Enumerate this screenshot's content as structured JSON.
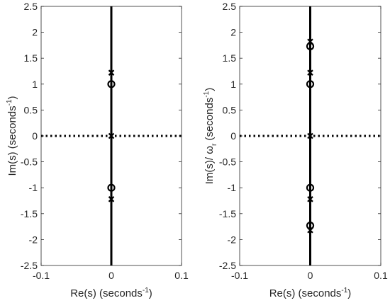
{
  "chart_data": [
    {
      "type": "scatter",
      "title": "",
      "xlabel": "Re(s) (seconds",
      "xlabel_sup": "-1",
      "xlabel_end": ")",
      "ylabel": "Im(s)  (seconds",
      "ylabel_sup": "-1",
      "ylabel_end": ")",
      "xlim": [
        -0.1,
        0.1
      ],
      "ylim": [
        -2.5,
        2.5
      ],
      "xticks": [
        "-0.1",
        "0",
        "0.1"
      ],
      "yticks": [
        "-2.5",
        "-2",
        "-1.5",
        "-1",
        "-0.5",
        "0",
        "0.5",
        "1",
        "1.5",
        "2",
        "2.5"
      ],
      "grid": false,
      "reference_lines": [
        {
          "orientation": "vertical",
          "value": 0,
          "style": "solid"
        },
        {
          "orientation": "horizontal",
          "value": 0,
          "style": "dotted"
        }
      ],
      "series": [
        {
          "marker": "x",
          "x": [
            0,
            0,
            0
          ],
          "y": [
            1.22,
            0,
            -1.22
          ]
        },
        {
          "marker": "o",
          "x": [
            0,
            0
          ],
          "y": [
            1.0,
            -1.0
          ]
        }
      ]
    },
    {
      "type": "scatter",
      "title": "",
      "xlabel": "Re(s) (seconds",
      "xlabel_sup": "-1",
      "xlabel_end": ")",
      "ylabel": "Im(s)/ ω",
      "ylabel_sub": "r",
      "ylabel_rest": " (seconds",
      "ylabel_sup": "-1",
      "ylabel_end": ")",
      "xlim": [
        -0.1,
        0.1
      ],
      "ylim": [
        -2.5,
        2.5
      ],
      "xticks": [
        "-0.1",
        "0",
        "0.1"
      ],
      "yticks": [
        "-2.5",
        "-2",
        "-1.5",
        "-1",
        "-0.5",
        "0",
        "0.5",
        "1",
        "1.5",
        "2",
        "2.5"
      ],
      "grid": false,
      "reference_lines": [
        {
          "orientation": "vertical",
          "value": 0,
          "style": "solid"
        },
        {
          "orientation": "horizontal",
          "value": 0,
          "style": "dotted"
        }
      ],
      "series": [
        {
          "marker": "x",
          "x": [
            0,
            0,
            0,
            0,
            0
          ],
          "y": [
            1.82,
            1.22,
            0,
            -1.22,
            -1.82
          ]
        },
        {
          "marker": "o",
          "x": [
            0,
            0,
            0,
            0
          ],
          "y": [
            1.73,
            1.0,
            -1.0,
            -1.73
          ]
        }
      ]
    }
  ]
}
